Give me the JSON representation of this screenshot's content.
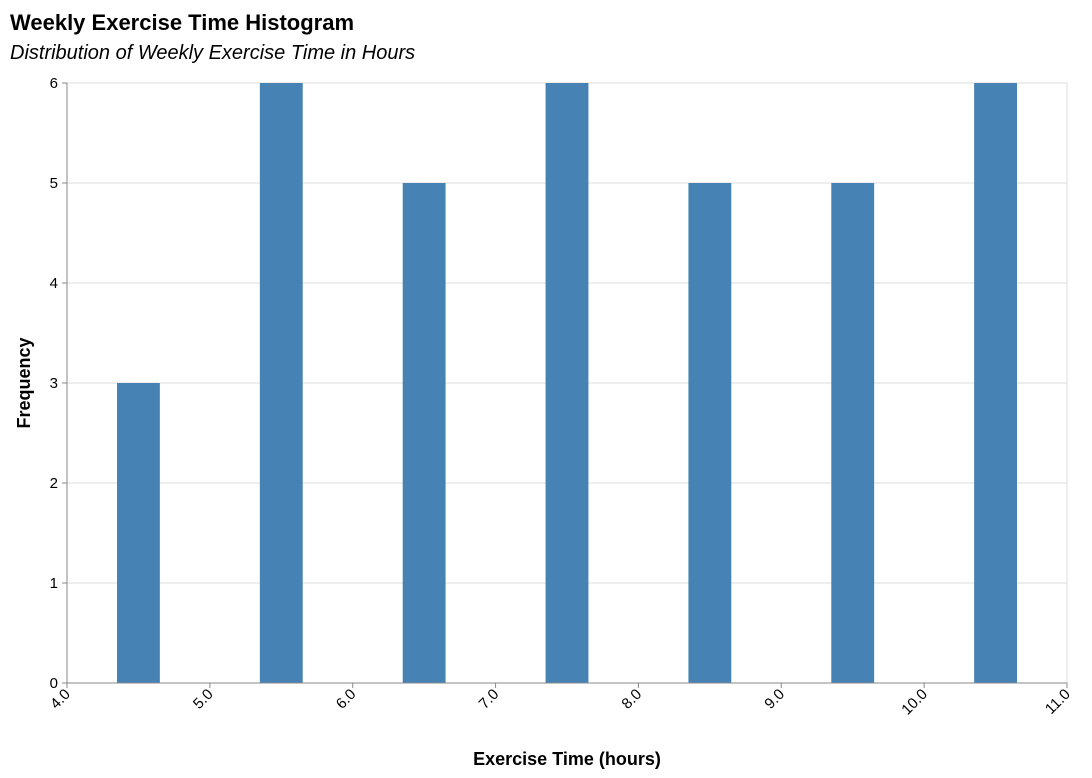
{
  "chart_data": {
    "type": "bar",
    "title": "Weekly Exercise Time Histogram",
    "subtitle": "Distribution of Weekly Exercise Time in Hours",
    "xlabel": "Exercise Time (hours)",
    "ylabel": "Frequency",
    "xlim": [
      4.0,
      11.0
    ],
    "ylim": [
      0,
      6
    ],
    "x_ticks": [
      "4.0",
      "5.0",
      "6.0",
      "7.0",
      "8.0",
      "9.0",
      "10.0",
      "11.0"
    ],
    "y_ticks": [
      "0",
      "1",
      "2",
      "3",
      "4",
      "5",
      "6"
    ],
    "bins": [
      {
        "start": 4.35,
        "end": 4.65,
        "value": 3
      },
      {
        "start": 5.35,
        "end": 5.65,
        "value": 6
      },
      {
        "start": 6.35,
        "end": 6.65,
        "value": 5
      },
      {
        "start": 7.35,
        "end": 7.65,
        "value": 6
      },
      {
        "start": 8.35,
        "end": 8.65,
        "value": 5
      },
      {
        "start": 9.35,
        "end": 9.65,
        "value": 5
      },
      {
        "start": 10.35,
        "end": 10.65,
        "value": 6
      }
    ],
    "bar_color": "#4682b4",
    "grid": true
  }
}
